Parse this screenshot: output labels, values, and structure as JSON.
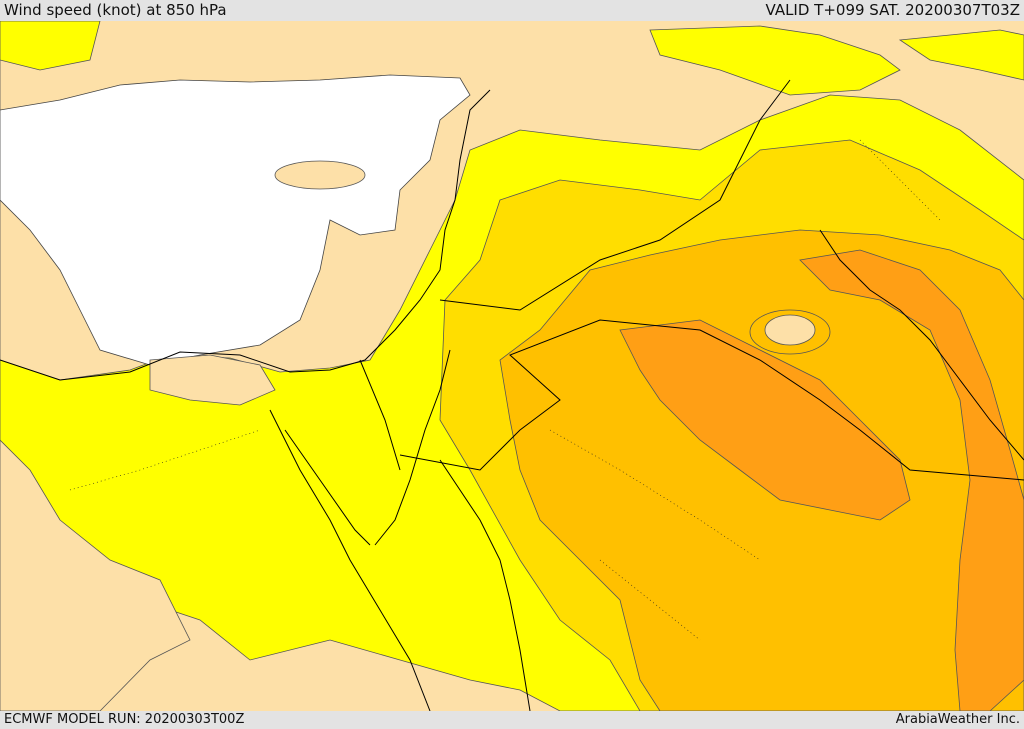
{
  "header": {
    "title": "Wind speed (knot) at 850 hPa",
    "valid": "VALID T+099 SAT. 20200307T03Z"
  },
  "footer": {
    "model_run": "ECMWF MODEL RUN: 20200303T00Z",
    "credit": "ArabiaWeather Inc."
  },
  "colors": {
    "background_low": "#fde0a8",
    "band_1": "#ffff00",
    "band_2": "#ffde00",
    "band_3": "#ffc000",
    "band_4": "#ff9f15",
    "masked_terrain": "#ffffff",
    "coastline": "#000000"
  }
}
